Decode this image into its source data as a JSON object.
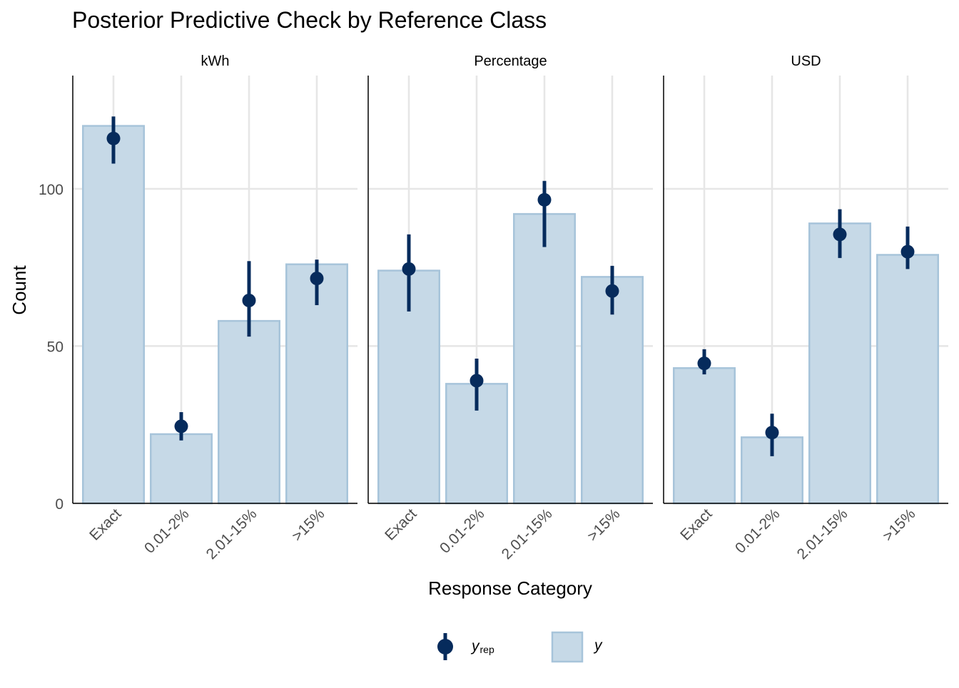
{
  "chart_data": {
    "type": "bar",
    "title": "Posterior Predictive Check by Reference Class",
    "xlabel": "Response Category",
    "ylabel": "Count",
    "ylim": [
      0,
      136
    ],
    "yticks": [
      0,
      50,
      100
    ],
    "grid": true,
    "legend_position": "bottom",
    "categories": [
      "Exact",
      "0.01-2%",
      "2.01-15%",
      ">15%"
    ],
    "legend": {
      "yrep_label": "y",
      "yrep_subscript": "rep",
      "y_label": "y"
    },
    "colors": {
      "bar_fill": "#c6d9e7",
      "bar_stroke": "#a7c4da",
      "point": "#062b5c",
      "grid": "#e6e6e6",
      "axis": "#000000",
      "text": "#000000",
      "tick_text": "#4d4d4d"
    },
    "panels": [
      {
        "name": "kWh",
        "y": [
          120,
          22,
          58,
          76
        ],
        "yrep": [
          {
            "median": 116,
            "low": 108,
            "high": 123
          },
          {
            "median": 24.5,
            "low": 20,
            "high": 29
          },
          {
            "median": 64.5,
            "low": 53,
            "high": 77
          },
          {
            "median": 71.5,
            "low": 63,
            "high": 77.5
          }
        ]
      },
      {
        "name": "Percentage",
        "y": [
          74,
          38,
          92,
          72
        ],
        "yrep": [
          {
            "median": 74.5,
            "low": 61,
            "high": 85.5
          },
          {
            "median": 39,
            "low": 29.5,
            "high": 46
          },
          {
            "median": 96.5,
            "low": 81.5,
            "high": 102.5
          },
          {
            "median": 67.5,
            "low": 60,
            "high": 75.5
          }
        ]
      },
      {
        "name": "USD",
        "y": [
          43,
          21,
          89,
          79
        ],
        "yrep": [
          {
            "median": 44.5,
            "low": 41,
            "high": 49
          },
          {
            "median": 22.5,
            "low": 15,
            "high": 28.5
          },
          {
            "median": 85.5,
            "low": 78,
            "high": 93.5
          },
          {
            "median": 80,
            "low": 74.5,
            "high": 88
          }
        ]
      }
    ]
  }
}
